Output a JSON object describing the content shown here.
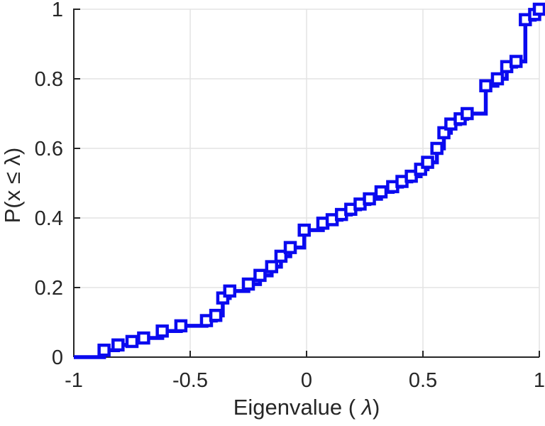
{
  "figure": {
    "xlabel_prefix": "Eigenvalue ( ",
    "xlabel_lambda": "λ",
    "xlabel_suffix": ")",
    "ylabel": "P(x ≤ λ)"
  },
  "chart_data": {
    "type": "step",
    "subtype": "empirical-cdf-stairs-with-square-markers",
    "title": "",
    "xlabel": "Eigenvalue ( λ)",
    "ylabel": "P(x ≤ λ)",
    "xlim": [
      -1,
      1
    ],
    "ylim": [
      0,
      1
    ],
    "x_tick_values": [
      -1,
      -0.5,
      0,
      0.5,
      1
    ],
    "x_tick_labels": [
      "-1",
      "-0.5",
      "0",
      "0.5",
      "1"
    ],
    "y_tick_values": [
      0,
      0.2,
      0.4,
      0.6,
      0.8,
      1
    ],
    "y_tick_labels": [
      "0",
      "0.2",
      "0.4",
      "0.6",
      "0.8",
      "1"
    ],
    "grid": true,
    "legend": null,
    "line_color": "#0A0AEF",
    "line_width": 5.5,
    "marker": "hollow-square",
    "marker_size": 14,
    "points": [
      [
        -1.0,
        0.0
      ],
      [
        -0.87,
        0.02
      ],
      [
        -0.81,
        0.035
      ],
      [
        -0.75,
        0.045
      ],
      [
        -0.7,
        0.055
      ],
      [
        -0.62,
        0.075
      ],
      [
        -0.54,
        0.09
      ],
      [
        -0.43,
        0.105
      ],
      [
        -0.39,
        0.12
      ],
      [
        -0.36,
        0.17
      ],
      [
        -0.33,
        0.19
      ],
      [
        -0.25,
        0.21
      ],
      [
        -0.2,
        0.235
      ],
      [
        -0.15,
        0.26
      ],
      [
        -0.11,
        0.29
      ],
      [
        -0.07,
        0.315
      ],
      [
        -0.01,
        0.365
      ],
      [
        0.07,
        0.385
      ],
      [
        0.11,
        0.395
      ],
      [
        0.15,
        0.41
      ],
      [
        0.19,
        0.425
      ],
      [
        0.23,
        0.44
      ],
      [
        0.27,
        0.455
      ],
      [
        0.32,
        0.475
      ],
      [
        0.37,
        0.49
      ],
      [
        0.41,
        0.505
      ],
      [
        0.45,
        0.52
      ],
      [
        0.49,
        0.54
      ],
      [
        0.52,
        0.56
      ],
      [
        0.56,
        0.6
      ],
      [
        0.59,
        0.645
      ],
      [
        0.62,
        0.67
      ],
      [
        0.66,
        0.685
      ],
      [
        0.69,
        0.7
      ],
      [
        0.77,
        0.78
      ],
      [
        0.82,
        0.8
      ],
      [
        0.86,
        0.835
      ],
      [
        0.9,
        0.85
      ],
      [
        0.94,
        0.97
      ],
      [
        0.98,
        0.985
      ],
      [
        1.0,
        1.0
      ]
    ]
  },
  "style": {
    "axis_color": "#262626",
    "grid_color": "#E4E4E4",
    "tick_font_size": "29",
    "background": "#FFFFFF"
  }
}
